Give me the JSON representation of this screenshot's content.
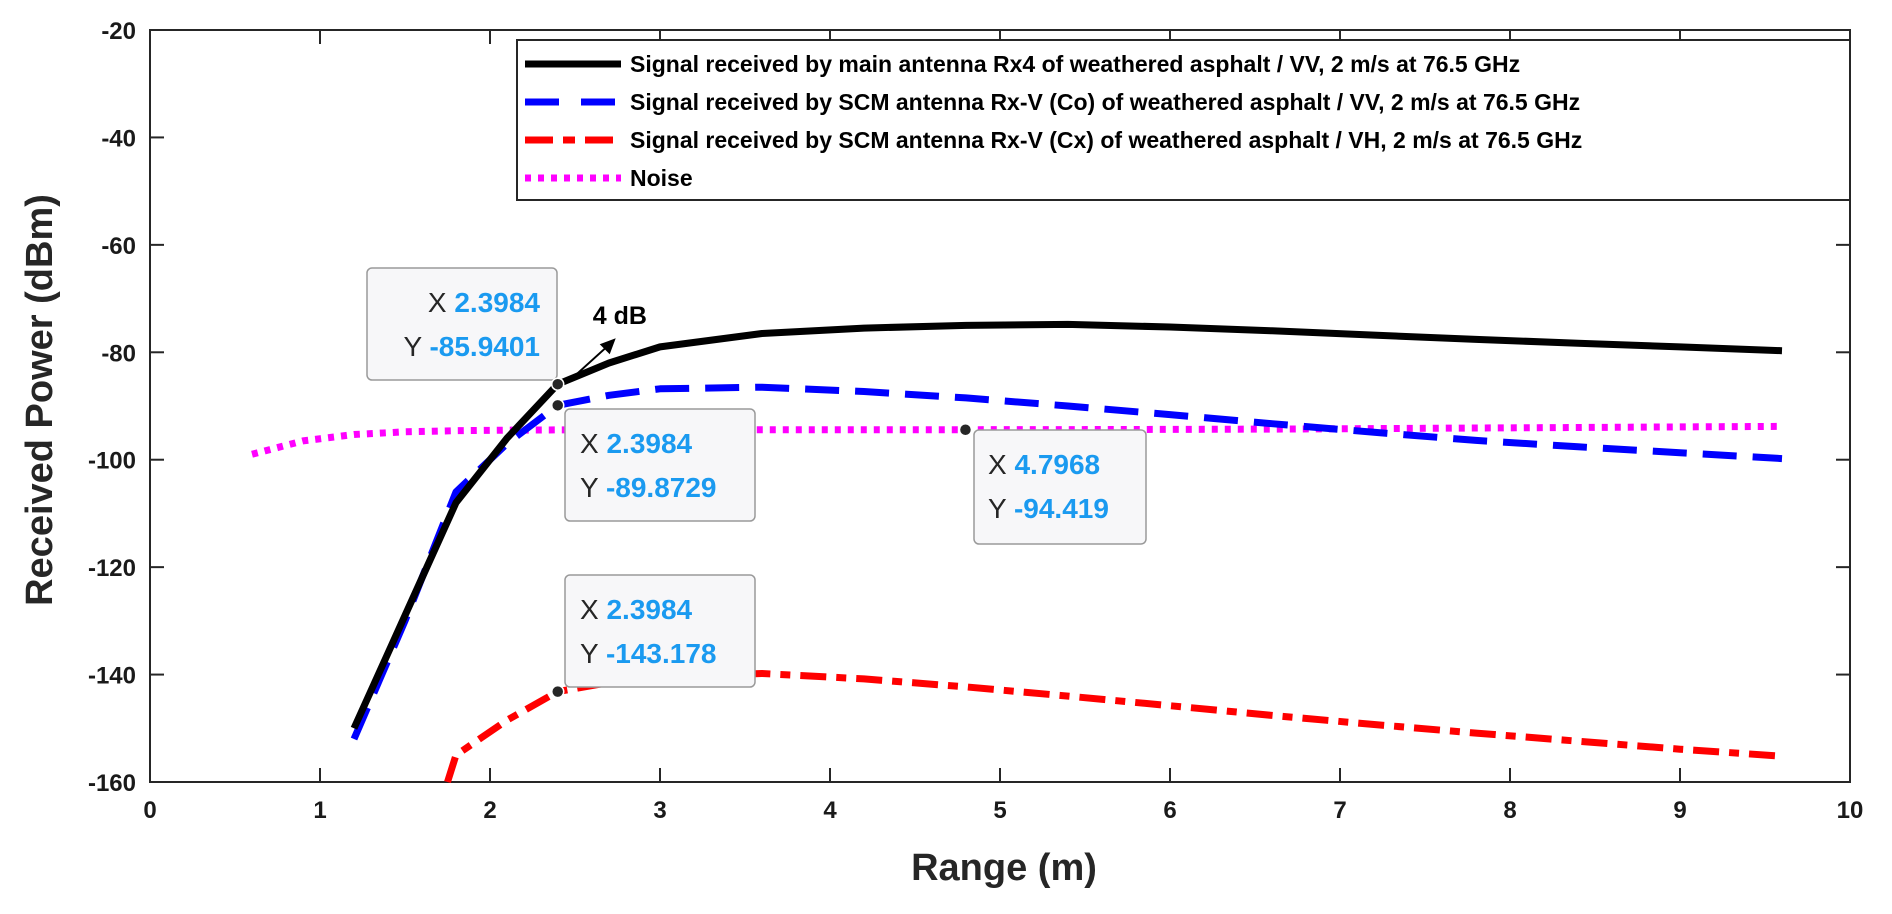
{
  "chart_data": {
    "type": "line",
    "xlabel": "Range (m)",
    "ylabel": "Received Power (dBm)",
    "xlim": [
      0,
      10
    ],
    "ylim": [
      -160,
      -20
    ],
    "xticks": [
      0,
      1,
      2,
      3,
      4,
      5,
      6,
      7,
      8,
      9,
      10
    ],
    "yticks": [
      -20,
      -40,
      -60,
      -80,
      -100,
      -120,
      -140,
      -160
    ],
    "grid": false,
    "legend_position": "top-right",
    "series": [
      {
        "name": "Signal received by main antenna Rx4 of weathered asphalt / VV, 2 m/s at 76.5 GHz",
        "color": "#000000",
        "style": "solid",
        "x": [
          1.2,
          1.5,
          1.8,
          2.1,
          2.3984,
          2.7,
          3.0,
          3.6,
          4.2,
          4.8,
          5.4,
          6.0,
          6.6,
          7.2,
          7.8,
          8.4,
          9.0,
          9.6
        ],
        "y": [
          -150,
          -129,
          -108,
          -96,
          -85.9401,
          -82,
          -79,
          -76.5,
          -75.5,
          -75.0,
          -74.8,
          -75.3,
          -76.0,
          -76.8,
          -77.6,
          -78.3,
          -79.0,
          -79.7
        ]
      },
      {
        "name": "Signal received by SCM antenna Rx-V (Co) of weathered asphalt / VV, 2 m/s at 76.5 GHz",
        "color": "#0000ff",
        "style": "dashed",
        "x": [
          1.2,
          1.5,
          1.8,
          2.1,
          2.3984,
          2.7,
          3.0,
          3.6,
          4.2,
          4.8,
          5.4,
          6.0,
          6.6,
          7.2,
          7.8,
          8.4,
          9.0,
          9.6
        ],
        "y": [
          -152,
          -130,
          -106,
          -97,
          -89.8729,
          -88,
          -86.8,
          -86.5,
          -87.3,
          -88.5,
          -90.0,
          -91.6,
          -93.3,
          -94.9,
          -96.4,
          -97.6,
          -98.7,
          -99.8
        ]
      },
      {
        "name": "Signal received by SCM antenna Rx-V (Cx) of weathered asphalt / VH, 2 m/s at 76.5 GHz",
        "color": "#ff0000",
        "style": "dashdot",
        "x": [
          1.75,
          1.8,
          2.1,
          2.3984,
          2.7,
          3.0,
          3.6,
          4.2,
          4.8,
          5.4,
          6.0,
          6.6,
          7.2,
          7.8,
          8.4,
          9.0,
          9.6
        ],
        "y": [
          -160,
          -155,
          -148.5,
          -143.178,
          -141.5,
          -140.5,
          -139.8,
          -140.8,
          -142.3,
          -144.0,
          -145.8,
          -147.6,
          -149.3,
          -150.9,
          -152.4,
          -153.9,
          -155.2
        ]
      },
      {
        "name": "Noise",
        "color": "#ff00ff",
        "style": "dotted",
        "x": [
          0.6,
          0.9,
          1.2,
          1.5,
          1.8,
          2.1,
          2.4,
          3.0,
          3.6,
          4.2,
          4.7968,
          5.4,
          6.0,
          6.6,
          7.2,
          7.8,
          8.4,
          9.0,
          9.6
        ],
        "y": [
          -99,
          -96.5,
          -95.3,
          -94.8,
          -94.6,
          -94.5,
          -94.45,
          -94.43,
          -94.42,
          -94.42,
          -94.419,
          -94.4,
          -94.35,
          -94.3,
          -94.2,
          -94.1,
          -94.0,
          -93.9,
          -93.8
        ]
      }
    ],
    "datatips": [
      {
        "name": "datatip-main-rx4",
        "x_label": "X",
        "y_label": "Y",
        "x_text": "2.3984",
        "y_text": "-85.9401",
        "x": 2.3984,
        "y": -85.9401
      },
      {
        "name": "datatip-co",
        "x_label": "X",
        "y_label": "Y",
        "x_text": "2.3984",
        "y_text": "-89.8729",
        "x": 2.3984,
        "y": -89.8729
      },
      {
        "name": "datatip-noise",
        "x_label": "X",
        "y_label": "Y",
        "x_text": "4.7968",
        "y_text": "-94.419",
        "x": 4.7968,
        "y": -94.419
      },
      {
        "name": "datatip-cx",
        "x_label": "X",
        "y_label": "Y",
        "x_text": "2.3984",
        "y_text": "-143.178",
        "x": 2.3984,
        "y": -143.178
      }
    ],
    "annotations": [
      {
        "text": "4 dB"
      }
    ]
  }
}
